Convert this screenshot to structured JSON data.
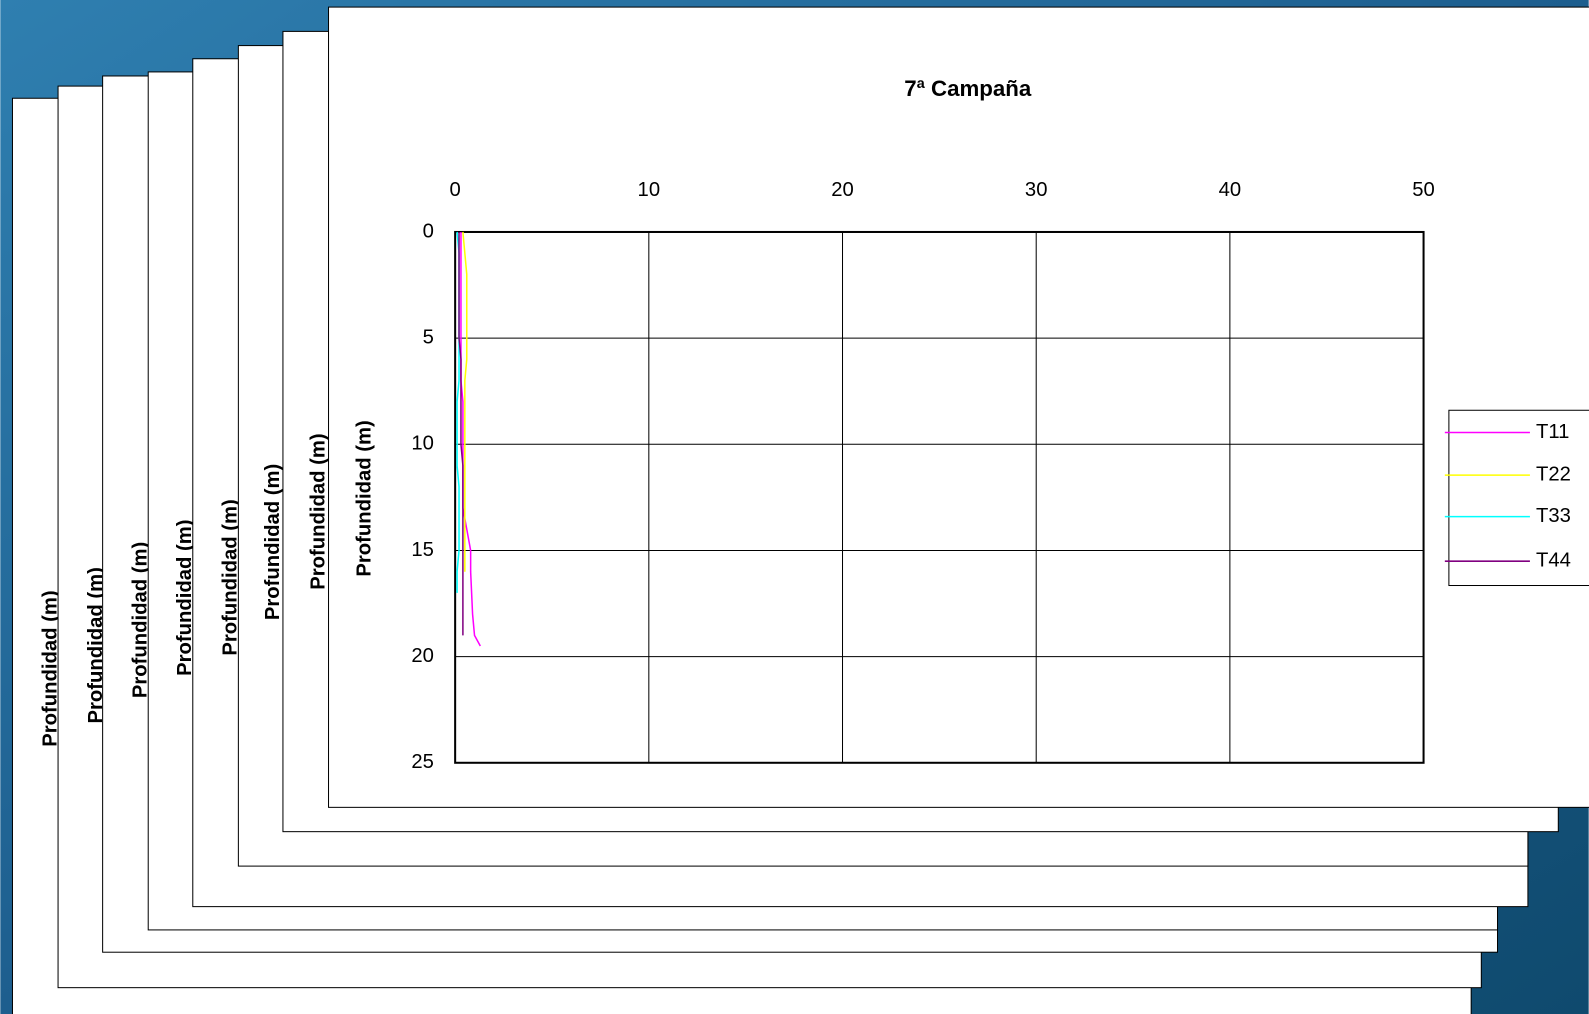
{
  "chart_data": {
    "type": "line",
    "title": "7ª Campaña",
    "y_label": "Profundidad (m)",
    "y": [
      0,
      1,
      2,
      3,
      4,
      5,
      6,
      7,
      8,
      9,
      10,
      11,
      12,
      13,
      14,
      15,
      16,
      17,
      18,
      19,
      19.5
    ],
    "series": [
      {
        "name": "T11",
        "color": "#ff00ff",
        "values": [
          0.3,
          0.3,
          0.3,
          0.3,
          0.3,
          0.3,
          0.3,
          0.3,
          0.4,
          0.4,
          0.4,
          0.4,
          0.4,
          0.4,
          0.6,
          0.8,
          0.8,
          0.85,
          0.9,
          1.0,
          1.3
        ]
      },
      {
        "name": "T22",
        "color": "#ffff00",
        "values": [
          0.4,
          0.5,
          0.6,
          0.6,
          0.6,
          0.6,
          0.6,
          0.5,
          0.5,
          0.5,
          0.5,
          0.5,
          0.5,
          0.5,
          0.5,
          0.5,
          0.5,
          null,
          null,
          null,
          null
        ]
      },
      {
        "name": "T33",
        "color": "#00ffff",
        "values": [
          0.1,
          0.2,
          0.2,
          0.2,
          0.2,
          0.2,
          0.2,
          0.2,
          0.1,
          0.1,
          0.1,
          0.1,
          0.2,
          0.2,
          0.2,
          0.2,
          0.1,
          0.1,
          null,
          null,
          null
        ]
      },
      {
        "name": "T44",
        "color": "#800080",
        "values": [
          0.2,
          0.2,
          0.2,
          0.2,
          0.2,
          0.2,
          0.3,
          0.3,
          0.3,
          0.3,
          0.3,
          0.4,
          0.4,
          0.4,
          0.4,
          0.4,
          0.4,
          0.4,
          0.4,
          0.4,
          null
        ]
      }
    ],
    "xlim": [
      0,
      50
    ],
    "xticks": [
      0,
      10,
      20,
      30,
      40,
      50
    ],
    "ylim": [
      0,
      25
    ],
    "yticks": [
      0,
      5,
      10,
      15,
      20,
      25
    ],
    "y_inverted": true,
    "x_axis_position": "top",
    "grid": true,
    "legend": "right"
  },
  "stacked_slides": {
    "y_labels": [
      "Profundidad (m)",
      "Profundidad (m)",
      "Profundidad (m)",
      "Profundidad (m)",
      "Profundidad (m)",
      "Profundidad (m)",
      "Profundidad (m)"
    ]
  }
}
